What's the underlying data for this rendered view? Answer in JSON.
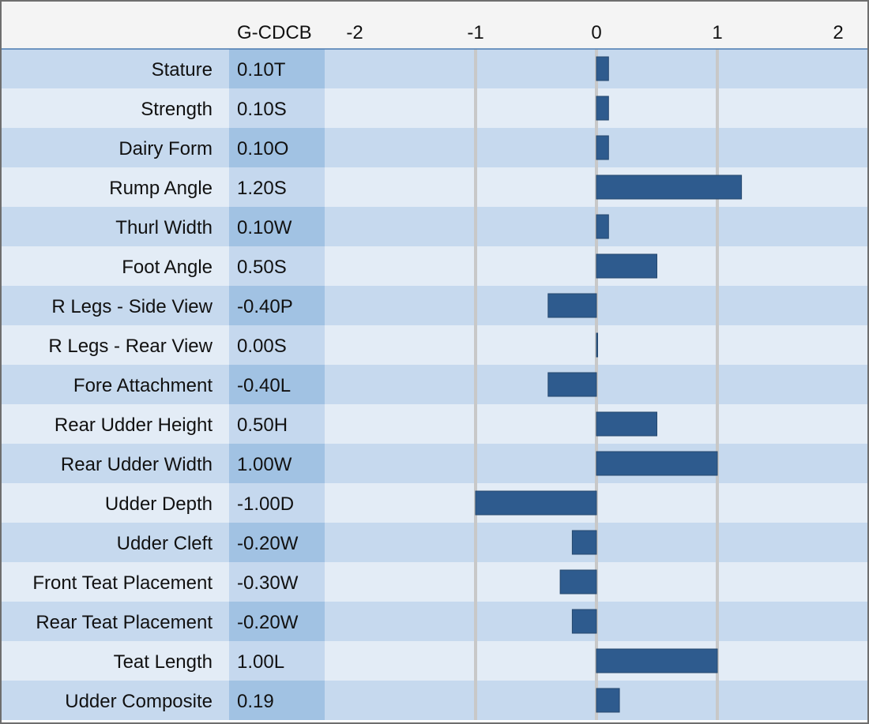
{
  "chart_data": {
    "type": "bar",
    "orientation": "horizontal",
    "value_column_header": "G-CDCB",
    "categories": [
      "Stature",
      "Strength",
      "Dairy Form",
      "Rump Angle",
      "Thurl Width",
      "Foot Angle",
      "R Legs - Side View",
      "R Legs - Rear View",
      "Fore Attachment",
      "Rear Udder Height",
      "Rear Udder Width",
      "Udder Depth",
      "Udder Cleft",
      "Front Teat Placement",
      "Rear Teat Placement",
      "Teat Length",
      "Udder Composite"
    ],
    "value_labels": [
      "0.10T",
      "0.10S",
      "0.10O",
      "1.20S",
      "0.10W",
      "0.50S",
      "-0.40P",
      "0.00S",
      "-0.40L",
      "0.50H",
      "1.00W",
      "-1.00D",
      "-0.20W",
      "-0.30W",
      "-0.20W",
      "1.00L",
      "0.19"
    ],
    "values": [
      0.1,
      0.1,
      0.1,
      1.2,
      0.1,
      0.5,
      -0.4,
      0.0,
      -0.4,
      0.5,
      1.0,
      -1.0,
      -0.2,
      -0.3,
      -0.2,
      1.0,
      0.19
    ],
    "xlim": [
      -2,
      2
    ],
    "x_ticks": [
      -2,
      -1,
      0,
      1,
      2
    ],
    "x_tick_labels": [
      "-2",
      "-1",
      "0",
      "1",
      "2"
    ],
    "x_axis_position": "top",
    "grid": true,
    "legend": "none",
    "title": "",
    "xlabel": "",
    "ylabel": ""
  },
  "colors": {
    "bar": "#2e5b8e",
    "row_dark": "#c6d9ee",
    "row_light": "#e3ecf6",
    "value_col_dark": "#a1c2e3",
    "value_col_light": "#c5d8ee",
    "gridline": "#c8c8c8",
    "header_bg": "#f4f4f4",
    "border": "#6e6e6e"
  }
}
